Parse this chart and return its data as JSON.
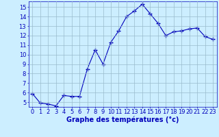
{
  "x": [
    0,
    1,
    2,
    3,
    4,
    5,
    6,
    7,
    8,
    9,
    10,
    11,
    12,
    13,
    14,
    15,
    16,
    17,
    18,
    19,
    20,
    21,
    22,
    23
  ],
  "y": [
    5.9,
    4.9,
    4.8,
    4.6,
    5.7,
    5.6,
    5.6,
    8.5,
    10.5,
    9.0,
    11.3,
    12.5,
    14.0,
    14.6,
    15.3,
    14.3,
    13.3,
    12.0,
    12.4,
    12.5,
    12.7,
    12.8,
    11.9,
    11.6
  ],
  "line_color": "#0000bb",
  "marker": "+",
  "markersize": 4,
  "linewidth": 0.8,
  "xlabel": "Graphe des températures (°c)",
  "background_color": "#cceeff",
  "grid_color": "#99bbcc",
  "axis_label_color": "#0000bb",
  "tick_color": "#0000bb",
  "xlim": [
    -0.5,
    23.5
  ],
  "ylim": [
    4.5,
    15.6
  ],
  "yticks": [
    5,
    6,
    7,
    8,
    9,
    10,
    11,
    12,
    13,
    14,
    15
  ],
  "xticks": [
    0,
    1,
    2,
    3,
    4,
    5,
    6,
    7,
    8,
    9,
    10,
    11,
    12,
    13,
    14,
    15,
    16,
    17,
    18,
    19,
    20,
    21,
    22,
    23
  ],
  "xlabel_fontsize": 7.0,
  "tick_fontsize": 6.0,
  "spine_color": "#0000bb"
}
